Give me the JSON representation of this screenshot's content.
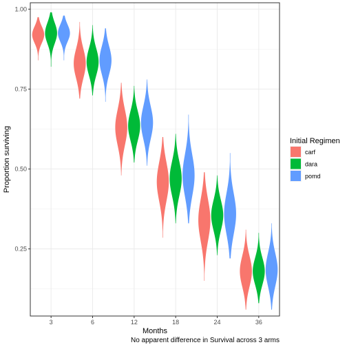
{
  "chart_data": {
    "type": "violin",
    "xlabel": "Months",
    "ylabel": "Proportion surviving",
    "caption": "No apparent difference in Survival across 3 arms",
    "ylim": [
      0.04,
      1.02
    ],
    "y_ticks": [
      "0.25",
      "0.50",
      "0.75",
      "1.00"
    ],
    "y_tick_values": [
      0.25,
      0.5,
      0.75,
      1.0
    ],
    "categories": [
      "3",
      "6",
      "12",
      "18",
      "24",
      "36"
    ],
    "grid": true,
    "legend_position": "right",
    "legend": {
      "title": "Initial Regimen",
      "entries": [
        {
          "name": "carf",
          "color": "#F8766D"
        },
        {
          "name": "dara",
          "color": "#00BA38"
        },
        {
          "name": "pomd",
          "color": "#619CFF"
        }
      ]
    },
    "series": [
      {
        "name": "carf",
        "color": "#F8766D",
        "distributions": [
          {
            "min": 0.84,
            "median": 0.92,
            "max": 0.975
          },
          {
            "min": 0.72,
            "median": 0.83,
            "max": 0.96
          },
          {
            "min": 0.48,
            "median": 0.63,
            "max": 0.77
          },
          {
            "min": 0.285,
            "median": 0.46,
            "max": 0.6
          },
          {
            "min": 0.15,
            "median": 0.34,
            "max": 0.49
          },
          {
            "min": 0.06,
            "median": 0.18,
            "max": 0.31
          }
        ]
      },
      {
        "name": "dara",
        "color": "#00BA38",
        "distributions": [
          {
            "min": 0.82,
            "median": 0.925,
            "max": 0.99
          },
          {
            "min": 0.73,
            "median": 0.835,
            "max": 0.95
          },
          {
            "min": 0.52,
            "median": 0.635,
            "max": 0.76
          },
          {
            "min": 0.33,
            "median": 0.47,
            "max": 0.61
          },
          {
            "min": 0.23,
            "median": 0.355,
            "max": 0.48
          },
          {
            "min": 0.08,
            "median": 0.18,
            "max": 0.3
          }
        ]
      },
      {
        "name": "pomd",
        "color": "#619CFF",
        "distributions": [
          {
            "min": 0.84,
            "median": 0.925,
            "max": 0.98
          },
          {
            "min": 0.71,
            "median": 0.84,
            "max": 0.94
          },
          {
            "min": 0.51,
            "median": 0.645,
            "max": 0.78
          },
          {
            "min": 0.33,
            "median": 0.48,
            "max": 0.67
          },
          {
            "min": 0.22,
            "median": 0.36,
            "max": 0.55
          },
          {
            "min": 0.06,
            "median": 0.185,
            "max": 0.33
          }
        ]
      }
    ]
  }
}
